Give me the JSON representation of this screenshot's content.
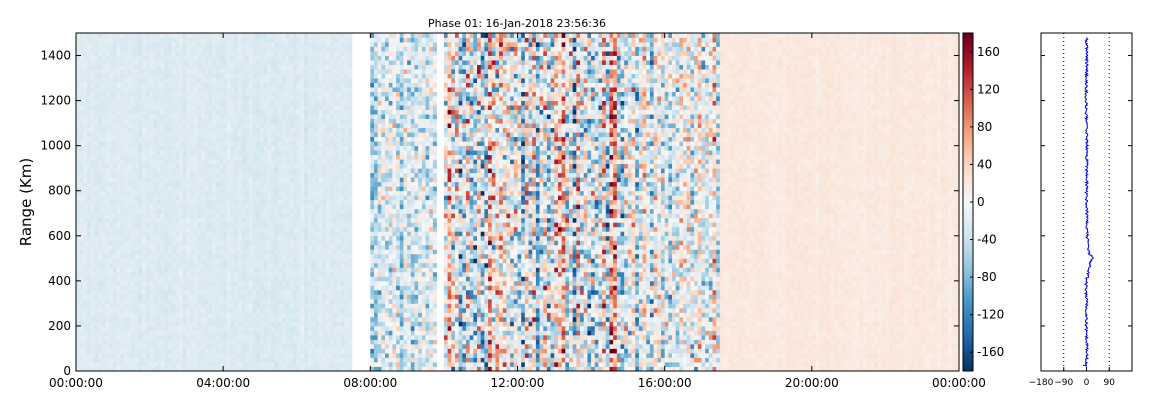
{
  "chart_data": [
    {
      "type": "heatmap",
      "title": "Phase 01: 16-Jan-2018 23:56:36",
      "ylabel": "Range (Km)",
      "xlim": [
        "00:00:00",
        "24:00:00"
      ],
      "ylim": [
        0,
        1500
      ],
      "x_ticks": [
        "00:00:00",
        "04:00:00",
        "08:00:00",
        "12:00:00",
        "16:00:00",
        "20:00:00",
        "00:00:00"
      ],
      "y_ticks": [
        0,
        200,
        400,
        600,
        800,
        1000,
        1200,
        1400
      ],
      "gaps": [
        {
          "start": "07:30",
          "end": "08:00"
        },
        {
          "start": "09:48",
          "end": "10:00"
        }
      ],
      "segments": [
        {
          "start": "00:00",
          "end": "07:30",
          "pattern": "light blue with vertical stripes",
          "mean_phase": -25,
          "spread": 10
        },
        {
          "start": "08:00",
          "end": "09:48",
          "pattern": "noisy striped",
          "mean_phase": -30,
          "spread": 90
        },
        {
          "start": "10:00",
          "end": "15:00",
          "pattern": "very noisy",
          "mean_phase": 0,
          "spread": 150
        },
        {
          "start": "15:00",
          "end": "17:30",
          "pattern": "noisy striped",
          "mean_phase": -10,
          "spread": 110
        },
        {
          "start": "17:30",
          "end": "24:00",
          "pattern": "smooth light red",
          "mean_phase": 18,
          "spread": 8
        }
      ],
      "grid": false
    },
    {
      "type": "colorbar",
      "colormap": "RdBu_r",
      "range": [
        -180,
        180
      ],
      "ticks": [
        -160,
        -120,
        -80,
        -40,
        0,
        40,
        80,
        120,
        160
      ]
    },
    {
      "type": "line",
      "x_ticks": [
        -180,
        -90,
        0,
        90
      ],
      "xlim": [
        -180,
        180
      ],
      "ylim": [
        0,
        1500
      ],
      "reference_lines": [
        -90,
        90
      ],
      "line_color": "#0000cc",
      "profile": [
        {
          "y": 20,
          "x": 0
        },
        {
          "y": 100,
          "x": 2
        },
        {
          "y": 200,
          "x": -1
        },
        {
          "y": 300,
          "x": 1
        },
        {
          "y": 360,
          "x": -3
        },
        {
          "y": 400,
          "x": 0
        },
        {
          "y": 440,
          "x": 8
        },
        {
          "y": 480,
          "x": 15
        },
        {
          "y": 505,
          "x": 25
        },
        {
          "y": 520,
          "x": 12
        },
        {
          "y": 560,
          "x": 4
        },
        {
          "y": 640,
          "x": 2
        },
        {
          "y": 800,
          "x": 0
        },
        {
          "y": 1000,
          "x": 2
        },
        {
          "y": 1200,
          "x": -2
        },
        {
          "y": 1350,
          "x": 1
        },
        {
          "y": 1480,
          "x": 0
        }
      ]
    }
  ]
}
